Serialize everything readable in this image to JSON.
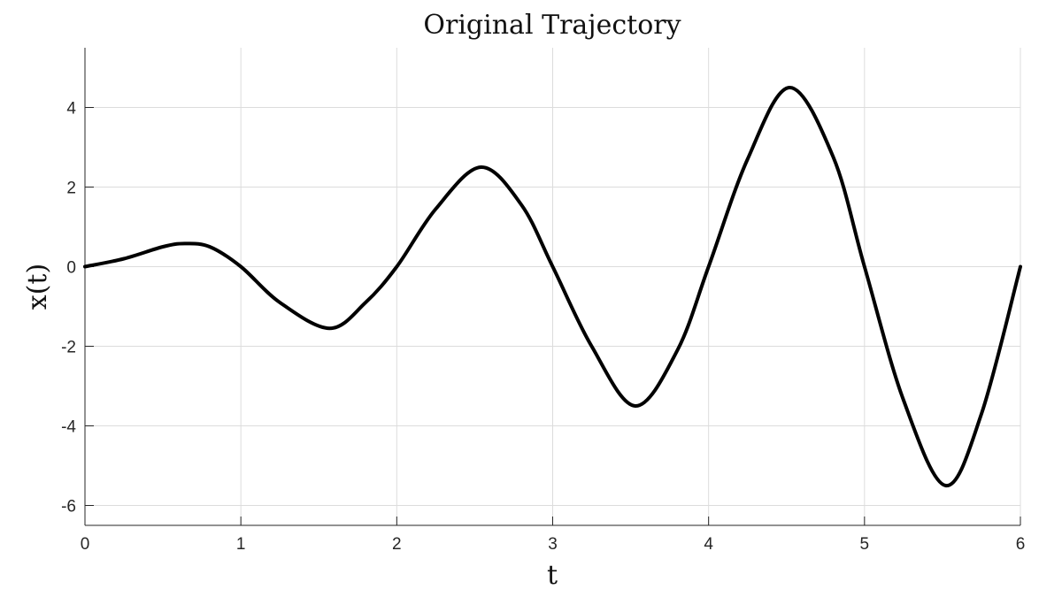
{
  "chart_data": {
    "type": "line",
    "title": "Original Trajectory",
    "xlabel": "t",
    "ylabel": "x(t)",
    "xlim": [
      0,
      6
    ],
    "ylim": [
      -6.5,
      5.5
    ],
    "x_ticks": [
      0,
      1,
      2,
      3,
      4,
      5,
      6
    ],
    "x_tick_labels": [
      "0",
      "1",
      "2",
      "3",
      "4",
      "5",
      "6"
    ],
    "y_ticks": [
      -6,
      -4,
      -2,
      0,
      2,
      4
    ],
    "y_tick_labels": [
      "-6",
      "-4",
      "-2",
      "0",
      "2",
      "4"
    ],
    "grid": true,
    "legend": "none",
    "line_color": "#000000",
    "series": [
      {
        "x": [
          0,
          0.25,
          0.5,
          0.64,
          0.8,
          1.0,
          1.25,
          1.57,
          1.8,
          2.0,
          2.25,
          2.54,
          2.8,
          3.0,
          3.25,
          3.53,
          3.8,
          4.0,
          4.25,
          4.52,
          4.8,
          5.0,
          5.25,
          5.52,
          5.75,
          6.0
        ],
        "y": [
          0,
          0.2,
          0.5,
          0.58,
          0.5,
          0.0,
          -0.9,
          -1.55,
          -0.9,
          0.0,
          1.45,
          2.5,
          1.55,
          0.0,
          -2.0,
          -3.5,
          -2.1,
          0.0,
          2.7,
          4.5,
          2.75,
          0.0,
          -3.35,
          -5.5,
          -3.7,
          0.0
        ]
      }
    ]
  }
}
